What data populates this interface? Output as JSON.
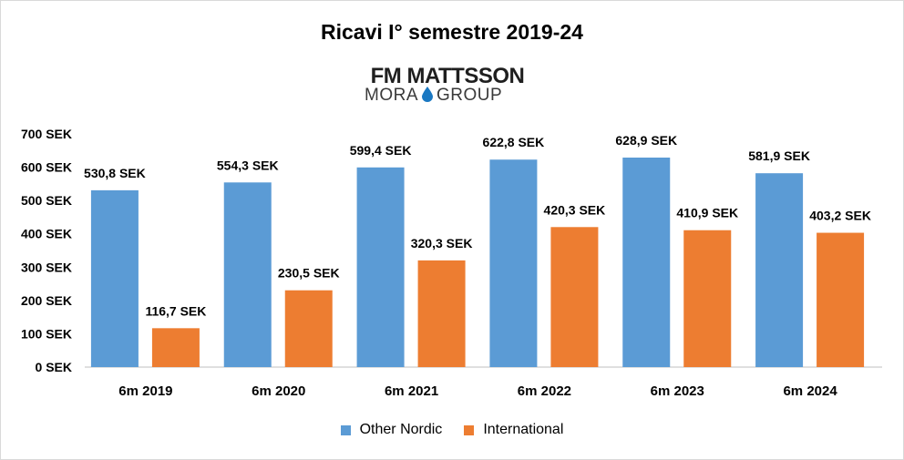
{
  "chart_data": {
    "type": "bar",
    "title": "Ricavi I° semestre 2019-24",
    "categories": [
      "6m 2019",
      "6m 2020",
      "6m 2021",
      "6m 2022",
      "6m 2023",
      "6m 2024"
    ],
    "series": [
      {
        "name": "Other Nordic",
        "color": "#5b9bd5",
        "values": [
          530.8,
          554.3,
          599.4,
          622.8,
          628.9,
          581.9
        ],
        "labels": [
          "530,8 SEK",
          "554,3 SEK",
          "599,4 SEK",
          "622,8 SEK",
          "628,9 SEK",
          "581,9 SEK"
        ]
      },
      {
        "name": "International",
        "color": "#ed7d31",
        "values": [
          116.7,
          230.5,
          320.3,
          420.3,
          410.9,
          403.2
        ],
        "labels": [
          "116,7 SEK",
          "230,5 SEK",
          "320,3 SEK",
          "420,3 SEK",
          "410,9 SEK",
          "403,2 SEK"
        ]
      }
    ],
    "ylim": [
      0,
      700
    ],
    "yticks": [
      "0 SEK",
      "100 SEK",
      "200 SEK",
      "300 SEK",
      "400 SEK",
      "500 SEK",
      "600 SEK",
      "700 SEK"
    ],
    "grid": false,
    "legend": "bottom"
  },
  "logo": {
    "line1": "FM MATTSSON",
    "line2_left": "MORA",
    "line2_right": "GROUP",
    "drop_color": "#1a78c2"
  }
}
